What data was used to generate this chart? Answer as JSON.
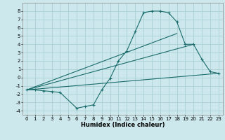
{
  "xlabel": "Humidex (Indice chaleur)",
  "bg_color": "#cce8ec",
  "grid_color": "#aacfd4",
  "line_color": "#1a6b6b",
  "xlim": [
    -0.5,
    23.5
  ],
  "ylim": [
    -4.5,
    9.0
  ],
  "xticks": [
    0,
    1,
    2,
    3,
    4,
    5,
    6,
    7,
    8,
    9,
    10,
    11,
    12,
    13,
    14,
    15,
    16,
    17,
    18,
    19,
    20,
    21,
    22,
    23
  ],
  "yticks": [
    -4,
    -3,
    -2,
    -1,
    0,
    1,
    2,
    3,
    4,
    5,
    6,
    7,
    8
  ],
  "curve1_x": [
    0,
    1,
    2,
    3,
    4,
    6,
    7,
    8,
    9,
    10,
    11,
    12,
    13,
    14,
    15,
    16,
    17,
    18,
    19,
    20,
    21,
    22,
    23
  ],
  "curve1_y": [
    -1.5,
    -1.5,
    -1.6,
    -1.7,
    -1.8,
    -3.7,
    -3.5,
    -3.3,
    -1.5,
    -0.1,
    2.0,
    3.2,
    5.5,
    7.8,
    8.0,
    8.0,
    7.8,
    6.7,
    4.0,
    4.0,
    2.2,
    0.7,
    0.5
  ],
  "curve2_x": [
    0,
    23
  ],
  "curve2_y": [
    -1.5,
    0.5
  ],
  "curve3_x": [
    0,
    20
  ],
  "curve3_y": [
    -1.5,
    4.0
  ],
  "curve4_x": [
    0,
    18
  ],
  "curve4_y": [
    -1.5,
    5.3
  ],
  "xlabel_fontsize": 6.0,
  "tick_fontsize": 5.0
}
